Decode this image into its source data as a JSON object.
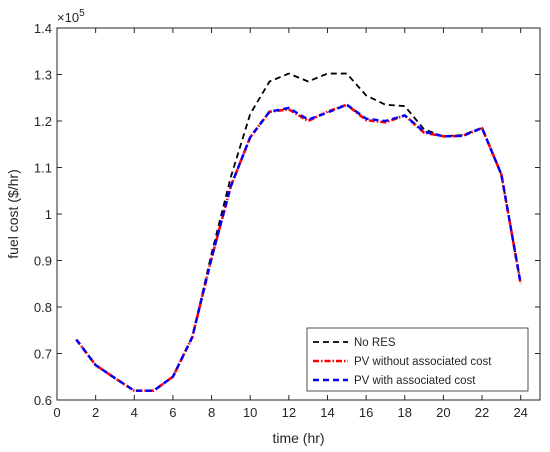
{
  "chart_data": {
    "type": "line",
    "xlabel": "time (hr)",
    "ylabel": "fuel cost ($/hr)",
    "y_exponent_base": "×10",
    "y_exponent_power": "5",
    "xlim": [
      0,
      25
    ],
    "ylim": [
      0.6,
      1.4
    ],
    "xticks": [
      0,
      2,
      4,
      6,
      8,
      10,
      12,
      14,
      16,
      18,
      20,
      22,
      24
    ],
    "yticks": [
      0.6,
      0.7,
      0.8,
      0.9,
      1,
      1.1,
      1.2,
      1.3,
      1.4
    ],
    "ytick_labels": [
      "0.6",
      "0.7",
      "0.8",
      "0.9",
      "1",
      "1.1",
      "1.2",
      "1.3",
      "1.4"
    ],
    "grid": false,
    "legend_position": "bottom-right",
    "x": [
      1,
      2,
      3,
      4,
      5,
      6,
      7,
      8,
      9,
      10,
      11,
      12,
      13,
      14,
      15,
      16,
      17,
      18,
      19,
      20,
      21,
      22,
      23,
      24
    ],
    "series": [
      {
        "name": "No RES",
        "color": "#000000",
        "dash": "6,4",
        "width": 1.8,
        "values": [
          0.73,
          0.675,
          0.647,
          0.62,
          0.62,
          0.65,
          0.735,
          0.915,
          1.08,
          1.215,
          1.285,
          1.302,
          1.285,
          1.302,
          1.302,
          1.255,
          1.235,
          1.232,
          1.182,
          1.167,
          1.17,
          1.185,
          1.085,
          0.85
        ]
      },
      {
        "name": "PV without associated cost",
        "color": "#ff0000",
        "dash": "6,2,1.5,2",
        "width": 2.6,
        "values": [
          0.73,
          0.675,
          0.647,
          0.62,
          0.62,
          0.65,
          0.735,
          0.905,
          1.06,
          1.165,
          1.22,
          1.225,
          1.2,
          1.22,
          1.235,
          1.202,
          1.197,
          1.212,
          1.175,
          1.167,
          1.168,
          1.185,
          1.085,
          0.85
        ]
      },
      {
        "name": "PV with associated cost",
        "color": "#0000ff",
        "dash": "6,4",
        "width": 2.4,
        "values": [
          0.73,
          0.675,
          0.647,
          0.62,
          0.62,
          0.65,
          0.735,
          0.905,
          1.06,
          1.165,
          1.22,
          1.228,
          1.203,
          1.218,
          1.235,
          1.205,
          1.2,
          1.212,
          1.177,
          1.167,
          1.168,
          1.185,
          1.085,
          0.85
        ]
      }
    ]
  }
}
